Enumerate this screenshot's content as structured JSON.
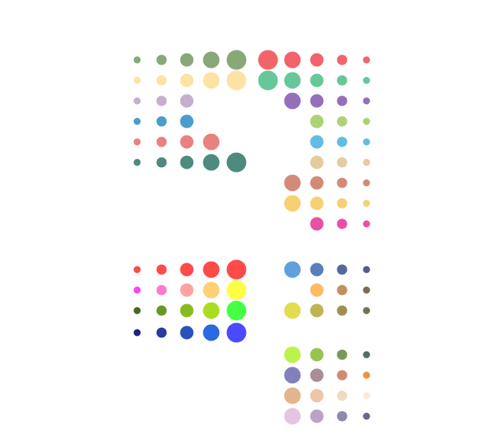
{
  "rows": [
    {
      "id": "r1",
      "cells": [
        {
          "c": "#88a878",
          "s": 1
        },
        {
          "c": "#88a878",
          "s": 2
        },
        {
          "c": "#88a878",
          "s": 3
        },
        {
          "c": "#88a878",
          "s": 4
        },
        {
          "c": "#88a878",
          "s": 5
        },
        {
          "c": "#f0646a",
          "s": 5
        },
        {
          "c": "#f0646a",
          "s": 4
        },
        {
          "c": "#f0646a",
          "s": 3
        },
        {
          "c": "#f0646a",
          "s": 2
        },
        {
          "c": "#f0646a",
          "s": 1
        }
      ]
    },
    {
      "id": "r2",
      "cells": [
        {
          "c": "#fce3a4",
          "s": 1
        },
        {
          "c": "#fce3a4",
          "s": 2
        },
        {
          "c": "#fce3a4",
          "s": 3
        },
        {
          "c": "#fce3a4",
          "s": 4
        },
        {
          "c": "#fce3a4",
          "s": 5
        },
        {
          "c": "#66c898",
          "s": 5
        },
        {
          "c": "#66c898",
          "s": 4
        },
        {
          "c": "#66c898",
          "s": 3
        },
        {
          "c": "#66c898",
          "s": 2
        },
        {
          "c": "#66c898",
          "s": 1
        }
      ]
    },
    {
      "id": "r3",
      "cells": [
        {
          "c": "#c6aecd",
          "s": 1
        },
        {
          "c": "#c6aecd",
          "s": 2
        },
        {
          "c": "#c6aecd",
          "s": 3
        },
        null,
        null,
        null,
        {
          "c": "#9470b8",
          "s": 4
        },
        {
          "c": "#9470b8",
          "s": 3
        },
        {
          "c": "#9470b8",
          "s": 2
        },
        {
          "c": "#9470b8",
          "s": 1
        }
      ]
    },
    {
      "id": "r4",
      "cells": [
        {
          "c": "#4a9ccc",
          "s": 1
        },
        {
          "c": "#4a9ccc",
          "s": 2
        },
        {
          "c": "#4a9ccc",
          "s": 3
        },
        null,
        null,
        null,
        null,
        {
          "c": "#acd276",
          "s": 3
        },
        {
          "c": "#acd276",
          "s": 2
        },
        {
          "c": "#acd276",
          "s": 1
        }
      ]
    },
    {
      "id": "r5",
      "cells": [
        {
          "c": "#e88280",
          "s": 1
        },
        {
          "c": "#e88280",
          "s": 2
        },
        {
          "c": "#e88280",
          "s": 3
        },
        {
          "c": "#e88280",
          "s": 4
        },
        null,
        null,
        null,
        {
          "c": "#62bce6",
          "s": 3
        },
        {
          "c": "#62bce6",
          "s": 2
        },
        {
          "c": "#62bce6",
          "s": 1
        }
      ]
    },
    {
      "id": "r6",
      "cells": [
        {
          "c": "#4e8a7e",
          "s": 1
        },
        {
          "c": "#4e8a7e",
          "s": 2
        },
        {
          "c": "#4e8a7e",
          "s": 3
        },
        {
          "c": "#4e8a7e",
          "s": 4
        },
        {
          "c": "#4e8a7e",
          "s": 5
        },
        null,
        null,
        {
          "c": "#e4cca0",
          "s": 3
        },
        {
          "c": "#e4cca0",
          "s": 2
        },
        {
          "c": "#e4cca0",
          "s": 1
        }
      ]
    },
    {
      "id": "r7",
      "cells": [
        null,
        null,
        null,
        null,
        null,
        null,
        {
          "c": "#d48a78",
          "s": 4
        },
        {
          "c": "#d48a78",
          "s": 3
        },
        {
          "c": "#d48a78",
          "s": 2
        },
        {
          "c": "#d48a78",
          "s": 1
        }
      ]
    },
    {
      "id": "r8",
      "cells": [
        null,
        null,
        null,
        null,
        null,
        null,
        {
          "c": "#f8d074",
          "s": 4
        },
        {
          "c": "#f8d074",
          "s": 3
        },
        {
          "c": "#f8d074",
          "s": 2
        },
        {
          "c": "#f8d074",
          "s": 1
        }
      ]
    },
    {
      "id": "r9",
      "cells": [
        null,
        null,
        null,
        null,
        null,
        null,
        null,
        {
          "c": "#e850a6",
          "s": 3
        },
        {
          "c": "#e850a6",
          "s": 2
        },
        {
          "c": "#e850a6",
          "s": 1
        }
      ]
    },
    {
      "id": "r10",
      "cells": [
        {
          "c": "#ff4a4a",
          "s": 1
        },
        {
          "c": "#ff4a4a",
          "s": 2
        },
        {
          "c": "#ff4a4a",
          "s": 3
        },
        {
          "c": "#ff4a4a",
          "s": 4
        },
        {
          "c": "#ff4a4a",
          "s": 5
        },
        null,
        {
          "c": "#60a0dc",
          "s": 4
        },
        {
          "c": "#5a80bc",
          "s": 3
        },
        {
          "c": "#5468a0",
          "s": 2
        },
        {
          "c": "#555a88",
          "s": 1
        }
      ]
    },
    {
      "id": "r11",
      "cells": [
        {
          "c": "#ff44ee",
          "s": 1
        },
        {
          "c": "#ff7acc",
          "s": 2
        },
        {
          "c": "#ffa2a2",
          "s": 3
        },
        {
          "c": "#ffd076",
          "s": 4
        },
        {
          "c": "#ffff44",
          "s": 5
        },
        null,
        null,
        {
          "c": "#fcbc62",
          "s": 3
        },
        {
          "c": "#c09060",
          "s": 2
        },
        {
          "c": "#7a6a58",
          "s": 1
        }
      ]
    },
    {
      "id": "r12",
      "cells": [
        {
          "c": "#446a1e",
          "s": 1
        },
        {
          "c": "#669922",
          "s": 2
        },
        {
          "c": "#88bb22",
          "s": 3
        },
        {
          "c": "#aadd22",
          "s": 4
        },
        {
          "c": "#44ff44",
          "s": 5
        },
        null,
        {
          "c": "#e2dc50",
          "s": 4
        },
        {
          "c": "#c0b452",
          "s": 3
        },
        {
          "c": "#a09050",
          "s": 2
        },
        {
          "c": "#6e7454",
          "s": 1
        }
      ]
    },
    {
      "id": "r13",
      "cells": [
        {
          "c": "#222288",
          "s": 1
        },
        {
          "c": "#2a3aa0",
          "s": 2
        },
        {
          "c": "#2a52bc",
          "s": 3
        },
        {
          "c": "#2a6ae0",
          "s": 4
        },
        {
          "c": "#4a4aff",
          "s": 5
        },
        null,
        null,
        null,
        null,
        null
      ]
    },
    {
      "id": "r14",
      "cells": [
        null,
        null,
        null,
        null,
        null,
        null,
        {
          "c": "#bcf24c",
          "s": 4
        },
        {
          "c": "#98c450",
          "s": 3
        },
        {
          "c": "#789a58",
          "s": 2
        },
        {
          "c": "#586e5e",
          "s": 1
        }
      ]
    },
    {
      "id": "r15",
      "cells": [
        null,
        null,
        null,
        null,
        null,
        null,
        {
          "c": "#8080bc",
          "s": 4
        },
        {
          "c": "#ac8c98",
          "s": 3
        },
        {
          "c": "#d08c70",
          "s": 2
        },
        {
          "c": "#f09040",
          "s": 1
        }
      ]
    },
    {
      "id": "r16",
      "cells": [
        null,
        null,
        null,
        null,
        null,
        null,
        {
          "c": "#e4b48c",
          "s": 4
        },
        {
          "c": "#ecc6a6",
          "s": 3
        },
        {
          "c": "#f2dac0",
          "s": 2
        },
        {
          "c": "#faeada",
          "s": 1
        }
      ]
    },
    {
      "id": "r17",
      "cells": [
        null,
        null,
        null,
        null,
        null,
        null,
        {
          "c": "#e2c6e0",
          "s": 4
        },
        {
          "c": "#bca2c6",
          "s": 3
        },
        {
          "c": "#8e88aa",
          "s": 2
        },
        {
          "c": "#64688c",
          "s": 1
        }
      ]
    }
  ]
}
